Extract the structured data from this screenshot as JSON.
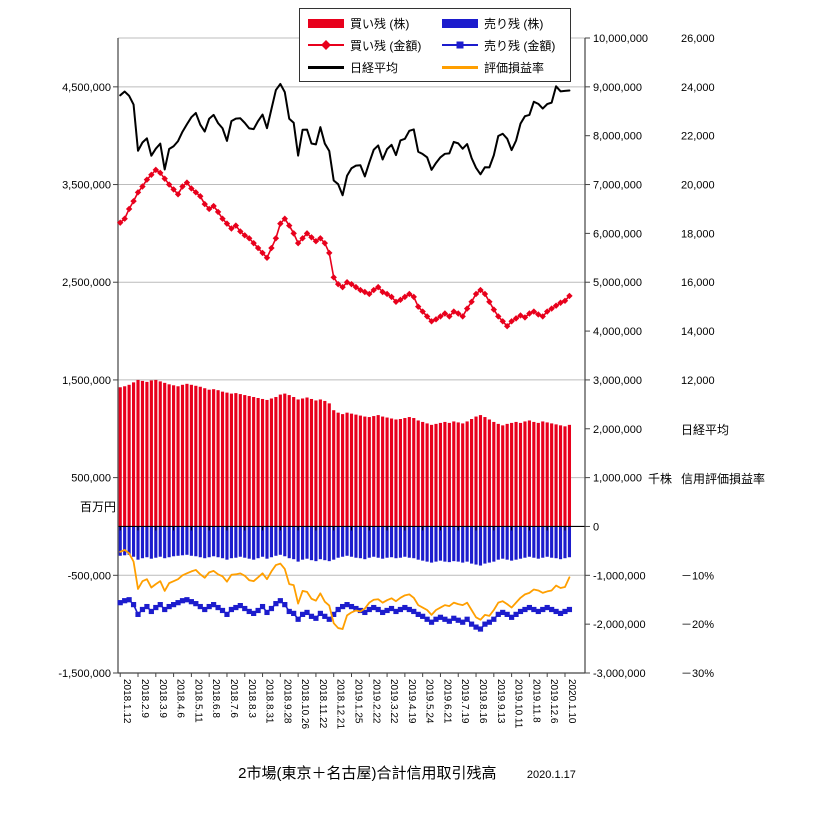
{
  "title": {
    "main": "2市場(東京＋名古屋)合計信用取引残高",
    "date": "2020.1.17"
  },
  "legend": {
    "items": [
      {
        "label": "買い残 (株)",
        "swatch": "red-bar",
        "color": "#e8001c"
      },
      {
        "label": "売り残 (株)",
        "swatch": "blue-bar",
        "color": "#1c1ccd"
      },
      {
        "label": "買い残 (金額)",
        "swatch": "red-diamond-line",
        "color": "#e8001c"
      },
      {
        "label": "売り残 (金額)",
        "swatch": "blue-square-line",
        "color": "#1c1ccd"
      },
      {
        "label": "日経平均",
        "swatch": "black-line",
        "color": "#000000"
      },
      {
        "label": "評価損益率",
        "swatch": "orange-line",
        "color": "#ff9f00"
      }
    ]
  },
  "axes": {
    "left": {
      "title": "百万円",
      "tick_labels": [
        "4,500,000",
        "3,500,000",
        "2,500,000",
        "1,500,000",
        "500,000",
        "-500,000",
        "-1,500,000"
      ],
      "tick_values": [
        4500000,
        3500000,
        2500000,
        1500000,
        500000,
        -500000,
        -1500000
      ]
    },
    "shares": {
      "title": "千株",
      "tick_labels": [
        "10,000,000",
        "9,000,000",
        "8,000,000",
        "7,000,000",
        "6,000,000",
        "5,000,000",
        "4,000,000",
        "3,000,000",
        "2,000,000",
        "1,000,000",
        "0",
        "-1,000,000",
        "-2,000,000",
        "-3,000,000"
      ],
      "tick_values": [
        10000000,
        9000000,
        8000000,
        7000000,
        6000000,
        5000000,
        4000000,
        3000000,
        2000000,
        1000000,
        0,
        -1000000,
        -2000000,
        -3000000
      ]
    },
    "nikkei": {
      "title": "日経平均",
      "tick_labels": [
        "26,000",
        "24,000",
        "22,000",
        "20,000",
        "18,000",
        "16,000",
        "14,000",
        "12,000"
      ],
      "tick_values": [
        26000,
        24000,
        22000,
        20000,
        18000,
        16000,
        14000,
        12000
      ]
    },
    "percent": {
      "title": "信用評価損益率",
      "tick_labels": [
        "－10%",
        "－20%",
        "－30%"
      ],
      "tick_values": [
        -10,
        -20,
        -30
      ]
    }
  },
  "chart_data": {
    "type": "combo",
    "x_slots": 105,
    "n_points": 102,
    "x_tick_labels": [
      "2018.1.12",
      "2018.2.9",
      "2018.3.9",
      "2018.4.6",
      "2018.5.11",
      "2018.6.8",
      "2018.7.6",
      "2018.8.3",
      "2018.8.31",
      "2018.9.28",
      "2018.10.26",
      "2018.11.22",
      "2018.12.21",
      "2019.1.25",
      "2019.2.22",
      "2019.3.22",
      "2019.4.19",
      "2019.5.24",
      "2019.6.21",
      "2019.7.19",
      "2019.8.16",
      "2019.9.13",
      "2019.10.11",
      "2019.11.8",
      "2019.12.6",
      "2020.1.10"
    ],
    "x_tick_every": 4,
    "axis_ranges": {
      "million_yen": [
        -1500000,
        5000000
      ],
      "shares": [
        -3000000,
        10000000
      ],
      "nikkei": [
        0,
        26000
      ],
      "percent": [
        -30,
        100
      ]
    },
    "series": [
      {
        "id": "buy_shares",
        "name": "買い残 (株)",
        "type": "bar",
        "axis": "shares",
        "color": "#e8001c",
        "values": [
          2850000,
          2870000,
          2900000,
          2950000,
          3000000,
          2980000,
          2960000,
          2990000,
          3000000,
          2970000,
          2940000,
          2910000,
          2890000,
          2870000,
          2900000,
          2920000,
          2900000,
          2880000,
          2860000,
          2830000,
          2800000,
          2810000,
          2790000,
          2760000,
          2740000,
          2720000,
          2730000,
          2710000,
          2690000,
          2670000,
          2650000,
          2630000,
          2610000,
          2590000,
          2620000,
          2650000,
          2700000,
          2720000,
          2690000,
          2650000,
          2600000,
          2620000,
          2640000,
          2610000,
          2580000,
          2600000,
          2570000,
          2520000,
          2380000,
          2330000,
          2300000,
          2330000,
          2310000,
          2290000,
          2270000,
          2250000,
          2240000,
          2260000,
          2280000,
          2250000,
          2230000,
          2210000,
          2190000,
          2200000,
          2220000,
          2240000,
          2220000,
          2170000,
          2140000,
          2110000,
          2080000,
          2100000,
          2120000,
          2140000,
          2120000,
          2150000,
          2130000,
          2110000,
          2150000,
          2200000,
          2250000,
          2280000,
          2240000,
          2190000,
          2140000,
          2100000,
          2070000,
          2100000,
          2120000,
          2140000,
          2120000,
          2150000,
          2170000,
          2140000,
          2120000,
          2150000,
          2130000,
          2110000,
          2090000,
          2070000,
          2050000,
          2080000
        ]
      },
      {
        "id": "sell_shares",
        "name": "売り残 (株)",
        "type": "bar",
        "axis": "shares",
        "color": "#1c1ccd",
        "values": [
          -600000,
          -590000,
          -580000,
          -620000,
          -680000,
          -650000,
          -630000,
          -660000,
          -640000,
          -620000,
          -650000,
          -630000,
          -610000,
          -600000,
          -590000,
          -580000,
          -600000,
          -610000,
          -630000,
          -650000,
          -630000,
          -610000,
          -630000,
          -650000,
          -680000,
          -650000,
          -640000,
          -620000,
          -640000,
          -660000,
          -680000,
          -650000,
          -620000,
          -660000,
          -630000,
          -600000,
          -580000,
          -610000,
          -650000,
          -670000,
          -720000,
          -680000,
          -660000,
          -690000,
          -710000,
          -670000,
          -690000,
          -710000,
          -680000,
          -640000,
          -620000,
          -600000,
          -620000,
          -640000,
          -650000,
          -670000,
          -640000,
          -620000,
          -640000,
          -660000,
          -640000,
          -630000,
          -650000,
          -640000,
          -620000,
          -640000,
          -650000,
          -680000,
          -700000,
          -720000,
          -740000,
          -720000,
          -700000,
          -720000,
          -730000,
          -710000,
          -720000,
          -740000,
          -720000,
          -760000,
          -780000,
          -800000,
          -760000,
          -740000,
          -720000,
          -680000,
          -660000,
          -680000,
          -700000,
          -680000,
          -660000,
          -640000,
          -620000,
          -640000,
          -660000,
          -640000,
          -620000,
          -640000,
          -650000,
          -670000,
          -650000,
          -630000
        ]
      },
      {
        "id": "buy_amount",
        "name": "買い残 (金額)",
        "type": "line",
        "axis": "million_yen",
        "color": "#e8001c",
        "marker": "diamond",
        "width": 1.6,
        "values": [
          3110000,
          3150000,
          3250000,
          3330000,
          3420000,
          3480000,
          3550000,
          3600000,
          3650000,
          3620000,
          3560000,
          3500000,
          3450000,
          3400000,
          3480000,
          3520000,
          3460000,
          3420000,
          3380000,
          3300000,
          3250000,
          3280000,
          3220000,
          3150000,
          3100000,
          3050000,
          3080000,
          3020000,
          2980000,
          2950000,
          2900000,
          2850000,
          2800000,
          2750000,
          2850000,
          2950000,
          3100000,
          3150000,
          3080000,
          3000000,
          2900000,
          2950000,
          3000000,
          2960000,
          2920000,
          2950000,
          2900000,
          2800000,
          2550000,
          2480000,
          2450000,
          2500000,
          2480000,
          2450000,
          2420000,
          2400000,
          2380000,
          2420000,
          2450000,
          2400000,
          2380000,
          2350000,
          2300000,
          2320000,
          2350000,
          2380000,
          2350000,
          2250000,
          2200000,
          2150000,
          2100000,
          2120000,
          2150000,
          2180000,
          2150000,
          2200000,
          2180000,
          2150000,
          2230000,
          2300000,
          2380000,
          2420000,
          2380000,
          2300000,
          2220000,
          2150000,
          2100000,
          2050000,
          2100000,
          2130000,
          2160000,
          2140000,
          2180000,
          2200000,
          2170000,
          2150000,
          2200000,
          2230000,
          2260000,
          2290000,
          2310000,
          2360000
        ]
      },
      {
        "id": "sell_amount",
        "name": "売り残 (金額)",
        "type": "line",
        "axis": "million_yen",
        "color": "#1c1ccd",
        "marker": "square",
        "width": 1.6,
        "values": [
          -780000,
          -760000,
          -750000,
          -800000,
          -900000,
          -850000,
          -820000,
          -870000,
          -830000,
          -800000,
          -850000,
          -820000,
          -800000,
          -780000,
          -760000,
          -750000,
          -770000,
          -790000,
          -820000,
          -850000,
          -820000,
          -800000,
          -830000,
          -860000,
          -900000,
          -850000,
          -830000,
          -810000,
          -840000,
          -870000,
          -890000,
          -860000,
          -820000,
          -880000,
          -840000,
          -790000,
          -760000,
          -800000,
          -870000,
          -890000,
          -950000,
          -900000,
          -880000,
          -920000,
          -940000,
          -890000,
          -920000,
          -950000,
          -900000,
          -850000,
          -820000,
          -800000,
          -820000,
          -840000,
          -860000,
          -880000,
          -850000,
          -830000,
          -850000,
          -880000,
          -860000,
          -840000,
          -870000,
          -850000,
          -830000,
          -850000,
          -870000,
          -900000,
          -920000,
          -950000,
          -980000,
          -950000,
          -930000,
          -950000,
          -970000,
          -940000,
          -960000,
          -980000,
          -950000,
          -1000000,
          -1030000,
          -1050000,
          -1000000,
          -980000,
          -950000,
          -900000,
          -880000,
          -900000,
          -930000,
          -900000,
          -870000,
          -850000,
          -830000,
          -850000,
          -870000,
          -850000,
          -830000,
          -850000,
          -870000,
          -890000,
          -870000,
          -850000
        ]
      },
      {
        "id": "nikkei",
        "name": "日経平均",
        "type": "line",
        "axis": "nikkei",
        "color": "#000000",
        "width": 2,
        "values": [
          23653,
          23808,
          23632,
          23274,
          21382,
          21720,
          21892,
          21181,
          21469,
          21676,
          20617,
          21454,
          21567,
          21778,
          22162,
          22467,
          22758,
          22930,
          22450,
          22171,
          22694,
          22851,
          22516,
          22304,
          21788,
          22597,
          22697,
          22712,
          22525,
          22298,
          22270,
          22601,
          22865,
          22307,
          23094,
          23869,
          24120,
          23783,
          22694,
          22532,
          21184,
          22243,
          22250,
          21680,
          21646,
          22351,
          21678,
          21374,
          20166,
          20014,
          19561,
          20359,
          20666,
          20773,
          20788,
          20333,
          20900,
          21425,
          21602,
          21025,
          21450,
          21627,
          21205,
          21807,
          21870,
          22200,
          22258,
          21344,
          21250,
          21117,
          20601,
          20884,
          21116,
          21258,
          21275,
          21746,
          21685,
          21466,
          21658,
          21087,
          20684,
          20418,
          20710,
          20704,
          21199,
          21988,
          22079,
          21878,
          21410,
          21798,
          22492,
          22799,
          22850,
          23391,
          23303,
          23112,
          23293,
          23354,
          24023,
          23816,
          23837,
          23850
        ]
      },
      {
        "id": "pl_ratio",
        "name": "評価損益率",
        "type": "line",
        "axis": "percent",
        "color": "#ff9f00",
        "width": 1.8,
        "values": [
          -5.2,
          -4.8,
          -5.5,
          -7.2,
          -12.8,
          -11.2,
          -10.8,
          -12.5,
          -11.8,
          -11.2,
          -13.2,
          -11.6,
          -11.2,
          -10.8,
          -10.0,
          -9.6,
          -9.2,
          -8.9,
          -9.8,
          -10.5,
          -9.4,
          -9.1,
          -9.8,
          -10.2,
          -11.3,
          -9.9,
          -9.8,
          -9.6,
          -10.1,
          -11.0,
          -11.2,
          -10.4,
          -9.6,
          -10.8,
          -9.2,
          -7.9,
          -7.6,
          -8.7,
          -11.8,
          -12.0,
          -15.8,
          -13.2,
          -13.4,
          -14.8,
          -15.2,
          -13.7,
          -15.4,
          -16.2,
          -19.8,
          -20.8,
          -21.0,
          -18.2,
          -17.6,
          -17.2,
          -17.4,
          -16.8,
          -15.6,
          -15.0,
          -14.9,
          -15.6,
          -15.1,
          -14.7,
          -15.3,
          -14.6,
          -14.1,
          -13.9,
          -14.6,
          -16.1,
          -16.6,
          -17.1,
          -18.1,
          -17.1,
          -16.6,
          -16.1,
          -16.3,
          -15.6,
          -15.9,
          -16.1,
          -15.6,
          -17.1,
          -18.6,
          -19.1,
          -18.1,
          -18.3,
          -17.1,
          -15.6,
          -15.3,
          -15.9,
          -16.6,
          -15.6,
          -14.6,
          -13.9,
          -13.6,
          -12.9,
          -13.1,
          -13.6,
          -13.3,
          -13.1,
          -12.1,
          -12.6,
          -12.4,
          -10.4
        ]
      }
    ]
  }
}
